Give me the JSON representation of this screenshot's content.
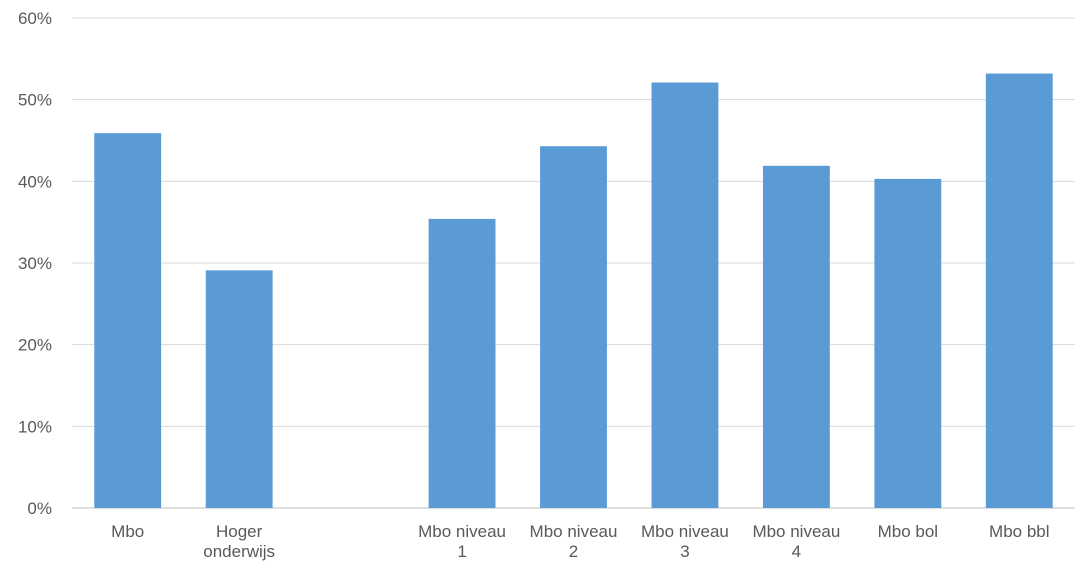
{
  "chart_data": {
    "type": "bar",
    "categories": [
      [
        "Mbo"
      ],
      [
        "Hoger",
        "onderwijs"
      ],
      [
        ""
      ],
      [
        "Mbo niveau",
        "1"
      ],
      [
        "Mbo niveau",
        "2"
      ],
      [
        "Mbo niveau",
        "3"
      ],
      [
        "Mbo niveau",
        "4"
      ],
      [
        "Mbo bol"
      ],
      [
        "Mbo bbl"
      ]
    ],
    "values": [
      45.9,
      29.1,
      null,
      35.4,
      44.3,
      52.1,
      41.9,
      40.3,
      53.2
    ],
    "ylim": [
      0,
      60
    ],
    "yticks": [
      0,
      10,
      20,
      30,
      40,
      50,
      60
    ],
    "ytick_labels": [
      "0%",
      "10%",
      "20%",
      "30%",
      "40%",
      "50%",
      "60%"
    ],
    "grid": true,
    "legend": "none",
    "title": "",
    "xlabel": "",
    "ylabel": "",
    "colors": {
      "bar": "#5b9bd5",
      "grid": "#d9d9d9",
      "text": "#595959"
    }
  }
}
